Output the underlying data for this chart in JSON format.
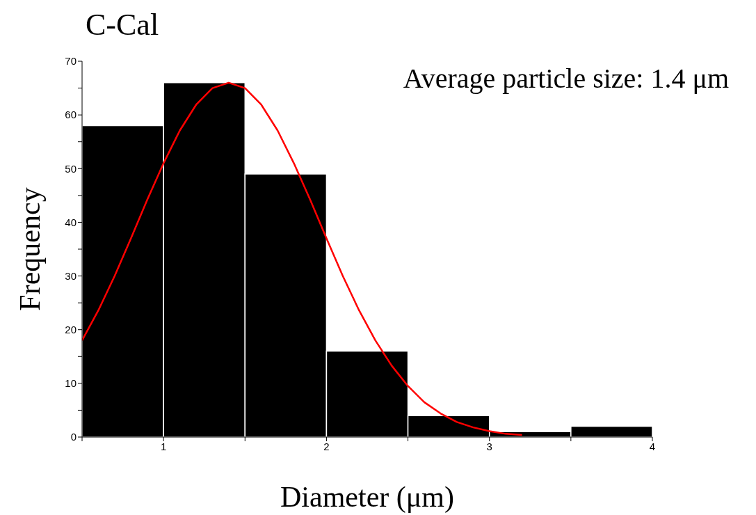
{
  "chart_data": {
    "type": "histogram",
    "title": "C-Cal",
    "xlabel": "Diameter (μm)",
    "ylabel": "Frequency",
    "annotations": [
      "Average particle size: 1.4 μm"
    ],
    "bins": [
      0.5,
      1,
      1.5,
      2,
      2.5,
      3,
      3.5,
      4
    ],
    "values": [
      58,
      66,
      49,
      16,
      4,
      1,
      2
    ],
    "color": "#000000",
    "series": [
      {
        "type": "line",
        "color": "#ff0000",
        "x": [
          0.5,
          0.6,
          0.7,
          0.8,
          0.9,
          1.0,
          1.1,
          1.2,
          1.3,
          1.4,
          1.5,
          1.6,
          1.7,
          1.8,
          1.9,
          2.0,
          2.1,
          2.2,
          2.3,
          2.4,
          2.5,
          2.6,
          2.7,
          2.8,
          2.9,
          3.0,
          3.1,
          3.2
        ],
        "values": [
          18,
          23.6,
          30,
          37,
          44.2,
          51,
          57.1,
          61.9,
          65,
          66,
          65,
          61.9,
          57.1,
          51,
          44.2,
          37,
          30,
          23.6,
          18,
          13.3,
          9.5,
          6.5,
          4.4,
          2.8,
          1.8,
          1.1,
          0.6,
          0.4
        ]
      }
    ],
    "xlim": [
      0.5,
      4
    ],
    "xticks": [
      {
        "value": 0.5,
        "label": null
      },
      1,
      {
        "value": 1.5,
        "label": null
      },
      2,
      {
        "value": 2.5,
        "label": null
      },
      3,
      {
        "value": 3.5,
        "label": null
      },
      4
    ],
    "ylim": [
      0,
      70
    ],
    "yticks": [
      0,
      {
        "value": 5,
        "label": null
      },
      10,
      {
        "value": 15,
        "label": null
      },
      20,
      {
        "value": 25,
        "label": null
      },
      30,
      {
        "value": 35,
        "label": null
      },
      40,
      {
        "value": 45,
        "label": null
      },
      50,
      {
        "value": 55,
        "label": null
      },
      60,
      {
        "value": 65,
        "label": null
      },
      70
    ],
    "grid": false,
    "legend": false,
    "marker": "none",
    "line_style": "solid"
  }
}
